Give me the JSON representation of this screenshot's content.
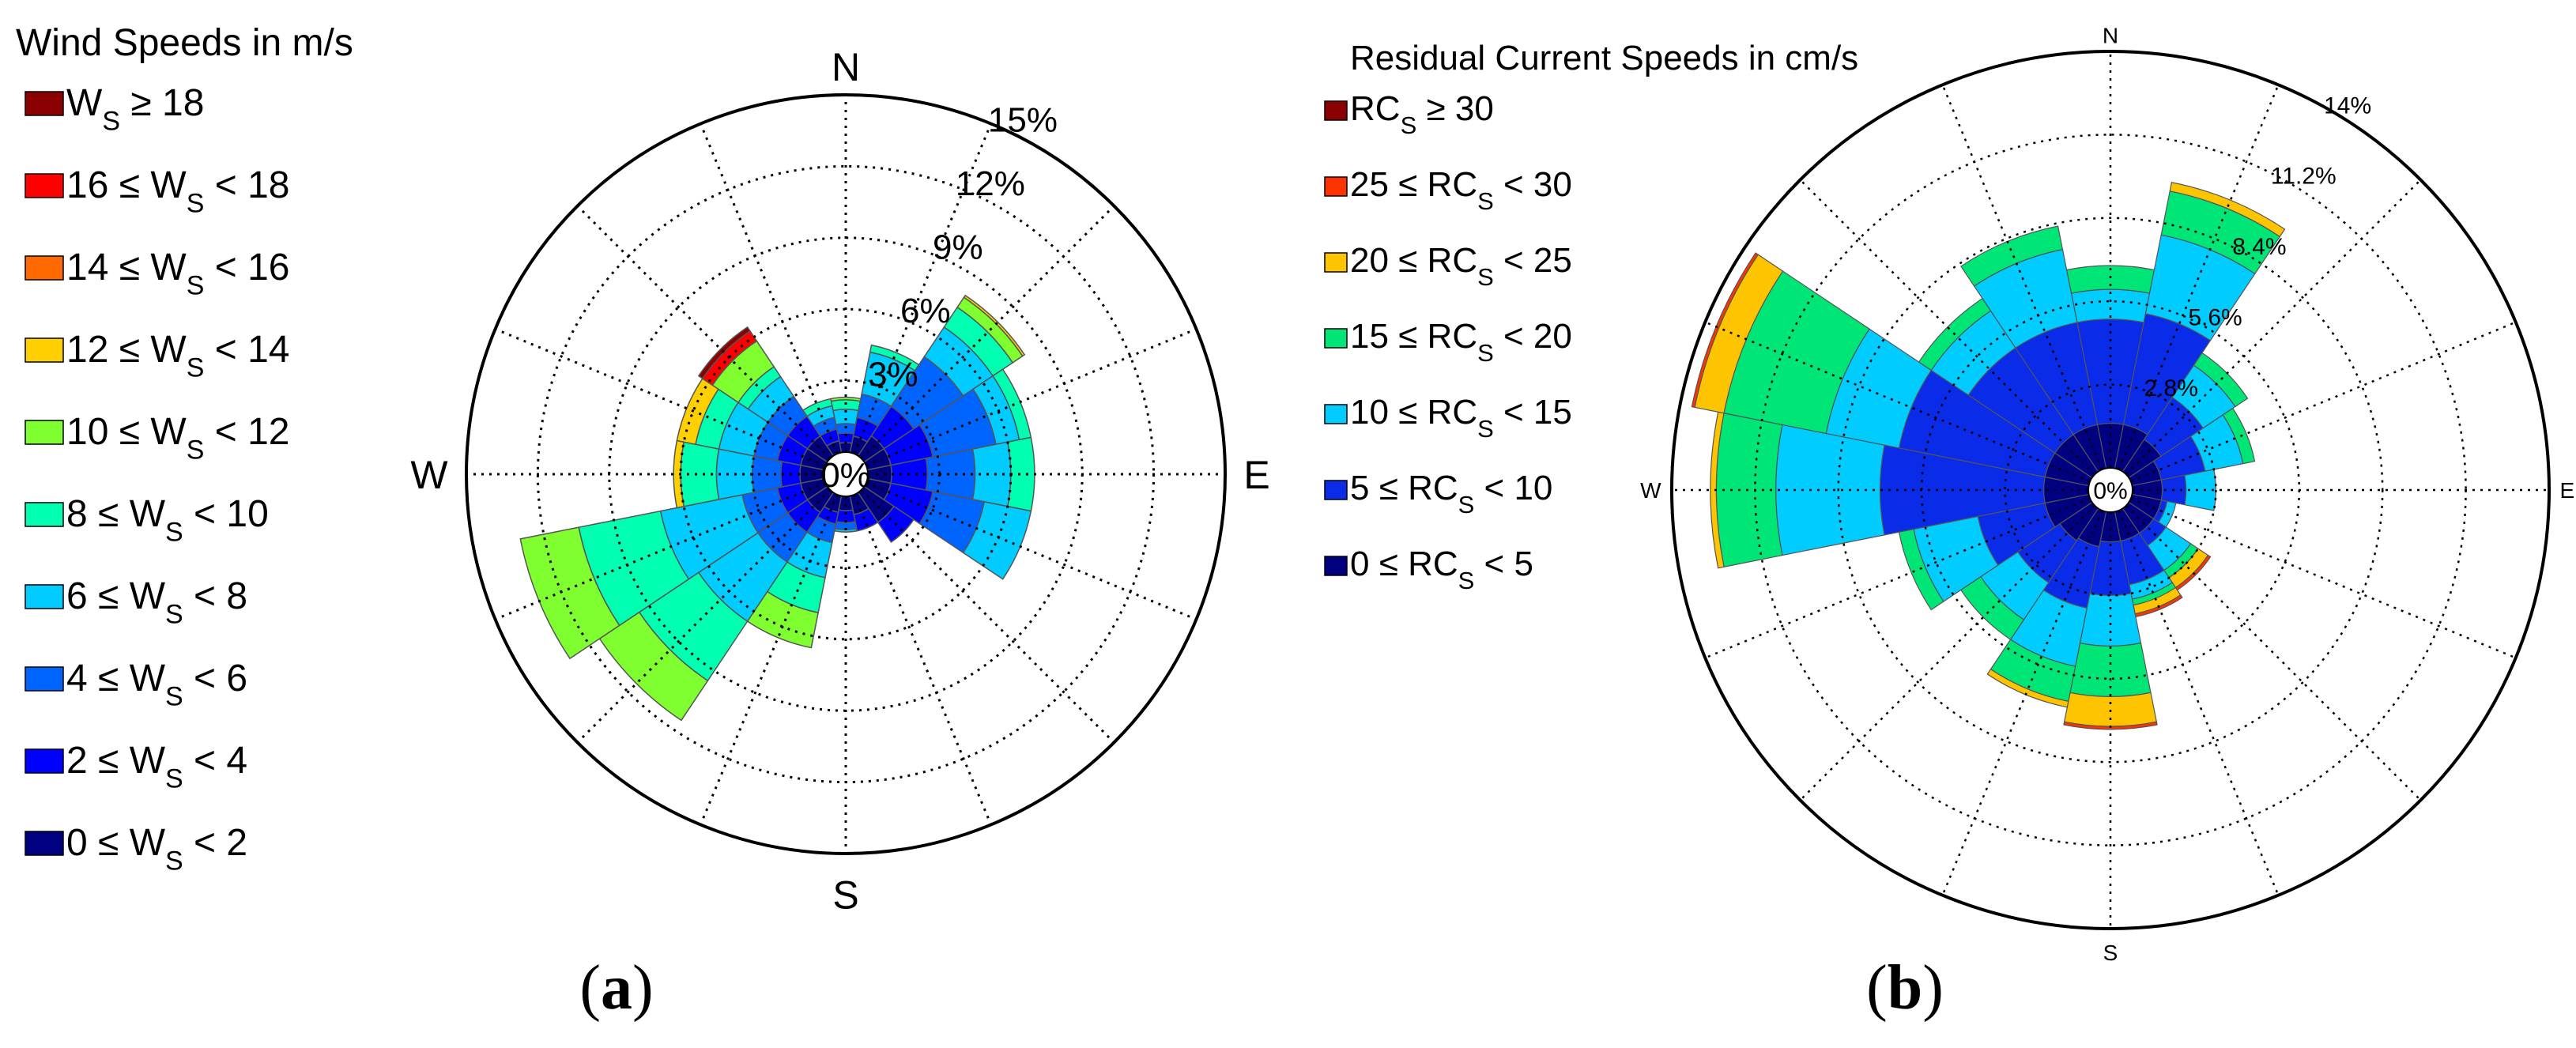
{
  "chart_data": [
    {
      "panel_label": "(a)",
      "panel_letter": "a",
      "type": "polar-stacked-bar (wind rose)",
      "title": "Wind Speeds in m/s",
      "directions": [
        "N",
        "NNE",
        "NE",
        "ENE",
        "E",
        "ESE",
        "SE",
        "SSE",
        "S",
        "SSW",
        "SW",
        "WSW",
        "W",
        "WNW",
        "NW",
        "NNW"
      ],
      "compass_labels": [
        "N",
        "E",
        "S",
        "W"
      ],
      "radial_max": 15,
      "radial_ticks": [
        3,
        6,
        9,
        12,
        15
      ],
      "radial_tick_labels": [
        "3%",
        "6%",
        "9%",
        "12%",
        "15%"
      ],
      "center_label": "0%",
      "bins": [
        {
          "text": "0 ≤ W",
          "sub": "S",
          "tail": " < 2",
          "color": "#000080"
        },
        {
          "text": "2 ≤ W",
          "sub": "S",
          "tail": " < 4",
          "color": "#0000ff"
        },
        {
          "text": "4 ≤ W",
          "sub": "S",
          "tail": " < 6",
          "color": "#0064ff"
        },
        {
          "text": "6 ≤ W",
          "sub": "S",
          "tail": " < 8",
          "color": "#00ccff"
        },
        {
          "text": "8 ≤ W",
          "sub": "S",
          "tail": " < 10",
          "color": "#00ffb0"
        },
        {
          "text": "10 ≤ W",
          "sub": "S",
          "tail": " < 12",
          "color": "#80ff30"
        },
        {
          "text": "12 ≤ W",
          "sub": "S",
          "tail": " < 14",
          "color": "#ffd000"
        },
        {
          "text": "14 ≤ W",
          "sub": "S",
          "tail": " < 16",
          "color": "#ff6a00"
        },
        {
          "text": "16 ≤ W",
          "sub": "S",
          "tail": " < 18",
          "color": "#ff0000"
        },
        {
          "text": "W",
          "sub": "S",
          "tail": " ≥ 18",
          "color": "#8b0000"
        }
      ],
      "cumulative": {
        "N": [
          0.4,
          0.8,
          1.2,
          1.8,
          2.2,
          2.3,
          2.3,
          2.3,
          2.3,
          2.3
        ],
        "NNE": [
          0.7,
          1.5,
          2.5,
          4.3,
          4.6,
          4.6,
          4.6,
          4.6,
          4.6,
          4.6
        ],
        "NE": [
          1.0,
          2.5,
          5.0,
          6.5,
          7.5,
          8.0,
          8.1,
          8.1,
          8.1,
          8.1
        ],
        "ENE": [
          1.0,
          2.8,
          5.5,
          6.5,
          7.0,
          7.0,
          7.0,
          7.0,
          7.0,
          7.0
        ],
        "E": [
          1.0,
          2.5,
          4.5,
          6.0,
          7.0,
          7.0,
          7.0,
          7.0,
          7.0,
          7.0
        ],
        "ESE": [
          1.0,
          2.8,
          5.0,
          7.0,
          7.0,
          7.0,
          7.0,
          7.0,
          7.0,
          7.0
        ],
        "SE": [
          1.5,
          2.5,
          2.5,
          2.5,
          2.5,
          2.5,
          2.5,
          2.5,
          2.5,
          2.5
        ],
        "SSE": [
          0.8,
          1.5,
          1.5,
          1.5,
          1.5,
          1.5,
          1.5,
          1.5,
          1.5,
          1.5
        ],
        "S": [
          0.6,
          1.1,
          1.4,
          1.5,
          1.5,
          1.5,
          1.5,
          1.5,
          1.5,
          1.5
        ],
        "SSW": [
          0.7,
          1.2,
          2.0,
          3.5,
          5.0,
          6.5,
          6.5,
          6.5,
          6.5,
          6.5
        ],
        "SW": [
          1.0,
          2.0,
          3.5,
          6.5,
          9.5,
          11.5,
          11.5,
          11.5,
          11.5,
          11.5
        ],
        "WSW": [
          1.0,
          2.0,
          3.5,
          7.0,
          10.5,
          13.0,
          13.0,
          13.0,
          13.0,
          13.0
        ],
        "W": [
          1.0,
          1.8,
          3.0,
          4.5,
          6.0,
          6.0,
          6.3,
          6.3,
          6.3,
          6.3
        ],
        "WNW": [
          1.0,
          2.0,
          3.0,
          4.5,
          5.5,
          5.5,
          6.3,
          6.3,
          6.3,
          6.3
        ],
        "NW": [
          1.0,
          2.0,
          3.0,
          4.0,
          4.5,
          5.8,
          5.8,
          5.8,
          6.3,
          6.5
        ],
        "NNW": [
          0.5,
          1.0,
          1.5,
          2.0,
          2.3,
          2.3,
          2.3,
          2.3,
          2.3,
          2.3
        ]
      }
    },
    {
      "panel_label": "(b)",
      "panel_letter": "b",
      "type": "polar-stacked-bar (current rose)",
      "title": "Residual Current Speeds in cm/s",
      "directions": [
        "N",
        "NNE",
        "NE",
        "ENE",
        "E",
        "ESE",
        "SE",
        "SSE",
        "S",
        "SSW",
        "SW",
        "WSW",
        "W",
        "WNW",
        "NW",
        "NNW"
      ],
      "compass_labels": [
        "N",
        "E",
        "S",
        "W"
      ],
      "radial_max": 14,
      "radial_ticks": [
        2.8,
        5.6,
        8.4,
        11.2,
        14
      ],
      "radial_tick_labels": [
        "2.8%",
        "5.6%",
        "8.4%",
        "11.2%",
        "14%"
      ],
      "center_label": "0%",
      "bins": [
        {
          "text": "0 ≤ RC",
          "sub": "S",
          "tail": " < 5",
          "color": "#000080"
        },
        {
          "text": "5 ≤ RC",
          "sub": "S",
          "tail": " < 10",
          "color": "#0a2be8"
        },
        {
          "text": "10 ≤ RC",
          "sub": "S",
          "tail": " < 15",
          "color": "#00ccff"
        },
        {
          "text": "15 ≤ RC",
          "sub": "S",
          "tail": " < 20",
          "color": "#00e676"
        },
        {
          "text": "20 ≤ RC",
          "sub": "S",
          "tail": " < 25",
          "color": "#ffc400"
        },
        {
          "text": "25 ≤ RC",
          "sub": "S",
          "tail": " < 30",
          "color": "#ff3300"
        },
        {
          "text": "RC",
          "sub": "S",
          "tail": " ≥ 30",
          "color": "#8b0000"
        }
      ],
      "cumulative": {
        "N": [
          1.5,
          5.0,
          6.0,
          6.8,
          6.8,
          6.8,
          6.8
        ],
        "NNE": [
          1.5,
          5.3,
          8.0,
          9.5,
          9.8,
          9.8,
          9.8
        ],
        "NE": [
          1.3,
          3.0,
          4.3,
          4.8,
          4.8,
          4.8,
          4.8
        ],
        "ENE": [
          1.0,
          2.5,
          3.8,
          4.2,
          4.2,
          4.2,
          4.2
        ],
        "E": [
          1.0,
          1.8,
          2.8,
          2.8,
          2.8,
          2.8,
          2.8
        ],
        "ESE": [
          1.0,
          1.2,
          1.5,
          1.5,
          1.5,
          1.5,
          1.5
        ],
        "SE": [
          1.0,
          1.5,
          2.5,
          2.8,
          3.2,
          3.3,
          3.3
        ],
        "SSE": [
          1.0,
          2.5,
          3.0,
          3.2,
          3.5,
          3.6,
          3.6
        ],
        "S": [
          1.0,
          2.8,
          4.5,
          6.2,
          7.2,
          7.3,
          7.3
        ],
        "SSW": [
          1.2,
          3.3,
          5.3,
          6.5,
          6.7,
          6.7,
          6.7
        ],
        "SW": [
          1.3,
          3.0,
          4.5,
          5.3,
          5.3,
          5.3,
          5.3
        ],
        "WSW": [
          1.5,
          3.8,
          6.0,
          6.5,
          6.5,
          6.5,
          6.5
        ],
        "W": [
          1.5,
          7.0,
          10.5,
          12.5,
          12.7,
          12.7,
          12.7
        ],
        "WNW": [
          1.5,
          6.5,
          9.0,
          12.5,
          13.5,
          13.6,
          13.6
        ],
        "NW": [
          1.5,
          5.0,
          6.5,
          7.0,
          7.0,
          7.0,
          7.0
        ],
        "NNW": [
          1.5,
          5.0,
          7.5,
          8.3,
          8.3,
          8.3,
          8.3
        ]
      }
    }
  ]
}
